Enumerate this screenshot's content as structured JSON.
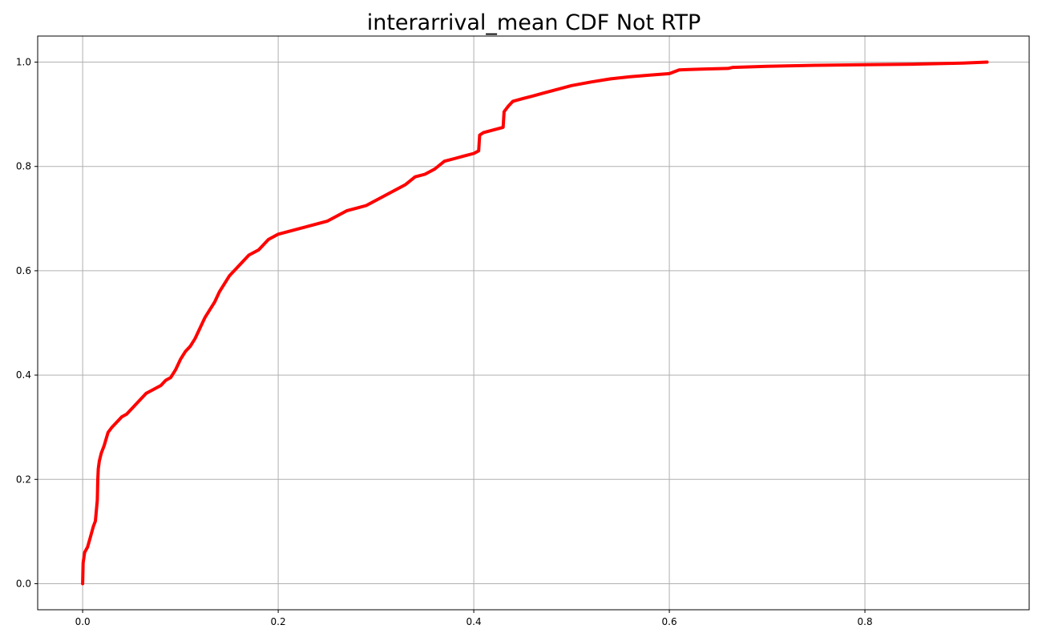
{
  "chart_data": {
    "type": "line",
    "title": "interarrival_mean CDF Not RTP",
    "xlabel": "",
    "ylabel": "",
    "xlim": [
      -0.046,
      0.968
    ],
    "ylim": [
      -0.05,
      1.05
    ],
    "xticks": [
      0.0,
      0.2,
      0.4,
      0.6,
      0.8
    ],
    "yticks": [
      0.0,
      0.2,
      0.4,
      0.6,
      0.8,
      1.0
    ],
    "xtick_labels": [
      "0.0",
      "0.2",
      "0.4",
      "0.6",
      "0.8"
    ],
    "ytick_labels": [
      "0.0",
      "0.2",
      "0.4",
      "0.6",
      "0.8",
      "1.0"
    ],
    "grid": true,
    "series": [
      {
        "color": "#ff0000",
        "x": [
          0.0,
          0.0005,
          0.002,
          0.005,
          0.008,
          0.011,
          0.013,
          0.015,
          0.0155,
          0.016,
          0.017,
          0.019,
          0.022,
          0.026,
          0.03,
          0.035,
          0.04,
          0.045,
          0.05,
          0.055,
          0.06,
          0.065,
          0.07,
          0.075,
          0.08,
          0.085,
          0.09,
          0.095,
          0.1,
          0.105,
          0.11,
          0.115,
          0.12,
          0.125,
          0.13,
          0.135,
          0.14,
          0.145,
          0.15,
          0.155,
          0.16,
          0.165,
          0.17,
          0.18,
          0.19,
          0.2,
          0.21,
          0.22,
          0.23,
          0.24,
          0.25,
          0.26,
          0.27,
          0.28,
          0.29,
          0.3,
          0.31,
          0.32,
          0.33,
          0.34,
          0.35,
          0.36,
          0.37,
          0.38,
          0.39,
          0.4,
          0.405,
          0.406,
          0.41,
          0.42,
          0.43,
          0.431,
          0.435,
          0.44,
          0.45,
          0.46,
          0.47,
          0.48,
          0.5,
          0.52,
          0.54,
          0.56,
          0.58,
          0.6,
          0.61,
          0.62,
          0.64,
          0.66,
          0.665,
          0.7,
          0.75,
          0.8,
          0.85,
          0.9,
          0.925
        ],
        "y": [
          0.0,
          0.04,
          0.06,
          0.07,
          0.09,
          0.11,
          0.12,
          0.16,
          0.2,
          0.22,
          0.235,
          0.25,
          0.265,
          0.29,
          0.3,
          0.31,
          0.32,
          0.325,
          0.335,
          0.345,
          0.355,
          0.365,
          0.37,
          0.375,
          0.38,
          0.39,
          0.395,
          0.41,
          0.43,
          0.445,
          0.455,
          0.47,
          0.49,
          0.51,
          0.525,
          0.54,
          0.56,
          0.575,
          0.59,
          0.6,
          0.61,
          0.62,
          0.63,
          0.64,
          0.66,
          0.67,
          0.675,
          0.68,
          0.685,
          0.69,
          0.695,
          0.705,
          0.715,
          0.72,
          0.725,
          0.735,
          0.745,
          0.755,
          0.765,
          0.78,
          0.785,
          0.795,
          0.81,
          0.815,
          0.82,
          0.825,
          0.83,
          0.86,
          0.865,
          0.87,
          0.875,
          0.905,
          0.915,
          0.925,
          0.93,
          0.935,
          0.94,
          0.945,
          0.955,
          0.962,
          0.968,
          0.972,
          0.975,
          0.978,
          0.985,
          0.986,
          0.987,
          0.988,
          0.99,
          0.992,
          0.994,
          0.995,
          0.996,
          0.998,
          1.0
        ]
      }
    ]
  }
}
